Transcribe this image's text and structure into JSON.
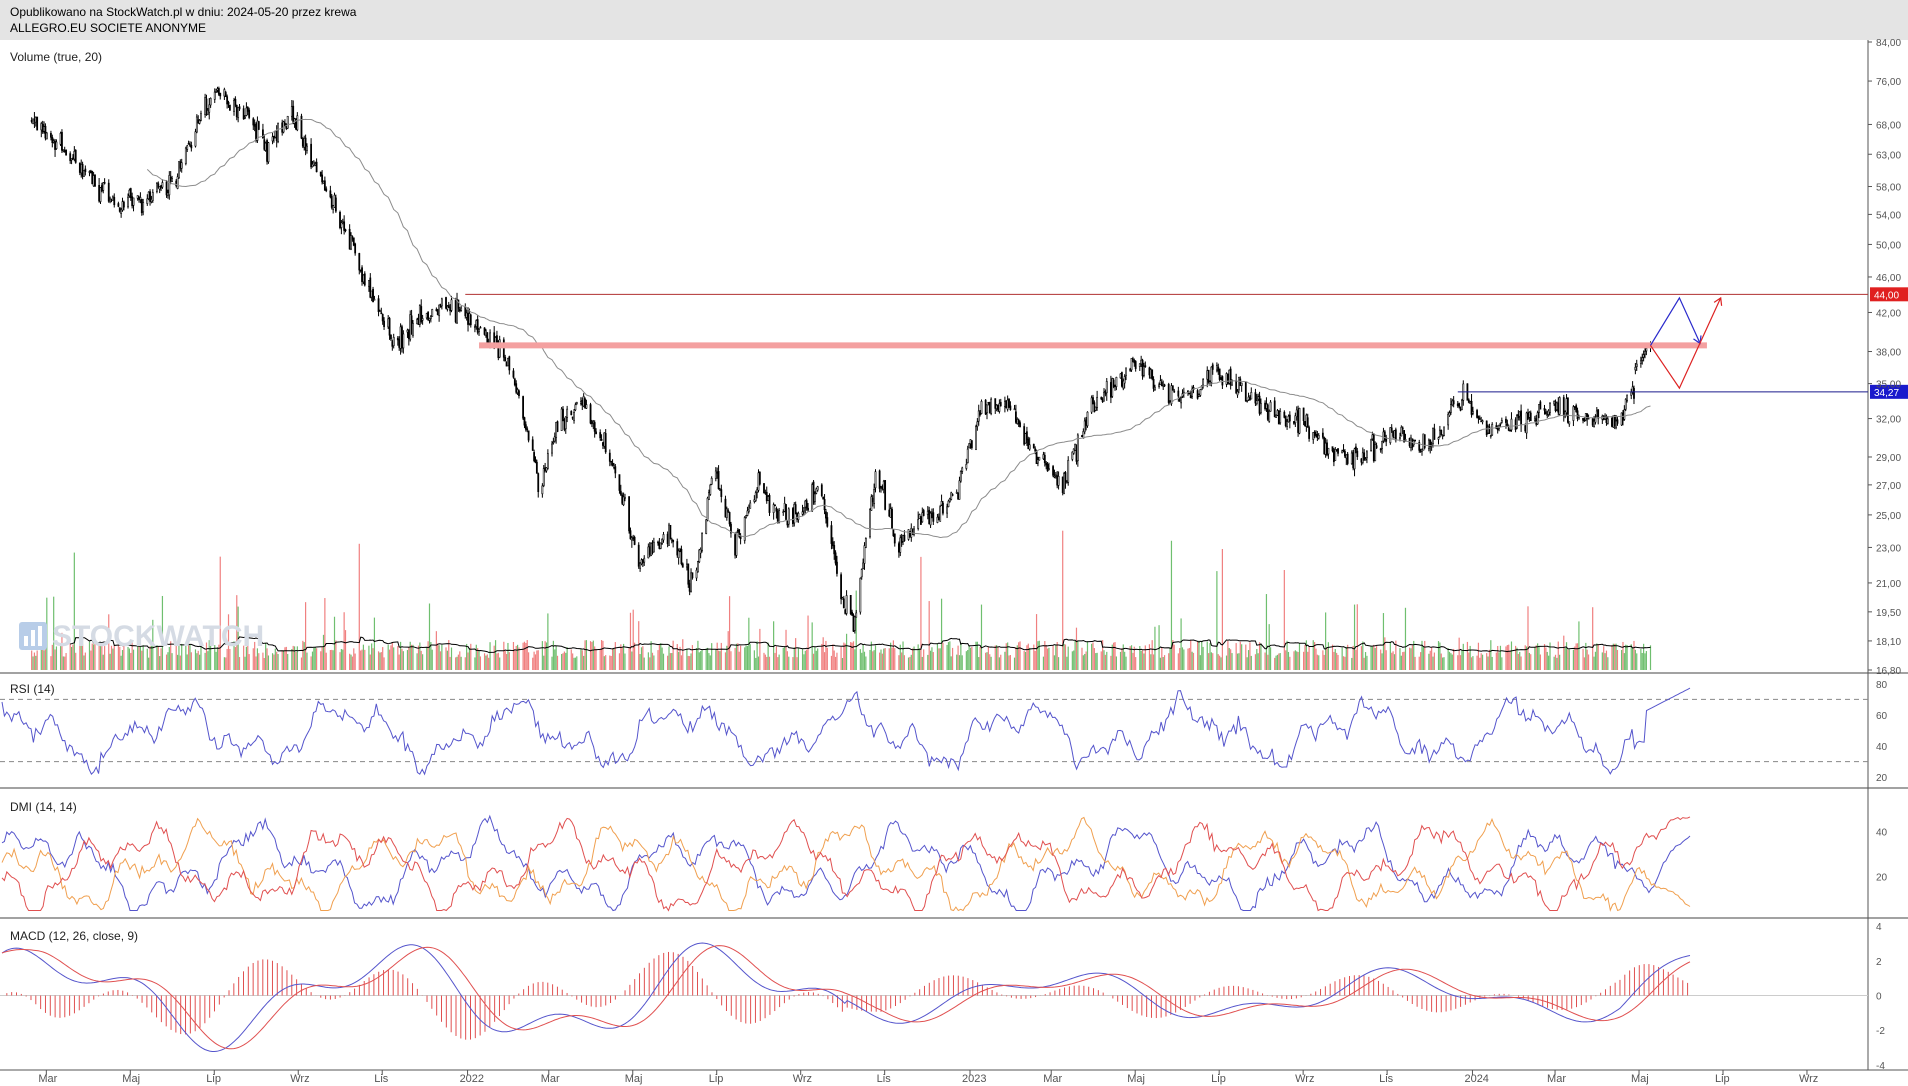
{
  "header": {
    "line1": "Opublikowano na StockWatch.pl w dniu: 2024-05-20 przez krewa",
    "line2": "ALLEGRO.EU SOCIETE ANONYME"
  },
  "watermark": "STOCKWATCH",
  "colors": {
    "price": "#000000",
    "ma": "#8c8c8c",
    "vol_up": "#6fbf6f",
    "vol_down": "#f08080",
    "rsi": "#5555cc",
    "dmi_plus": "#5555cc",
    "dmi_minus": "#f0a050",
    "adx": "#e05050",
    "macd": "#5555cc",
    "signal": "#e05050",
    "hist": "#e05050",
    "resistance": "#b03030",
    "zone": "#f4a0a0",
    "support": "#1a1a8c",
    "arrow_blue": "#2a2acc",
    "arrow_red": "#dd2222",
    "label_red": "#e02020",
    "label_blue": "#1a1acc"
  },
  "chart_data": [
    {
      "type": "candlestick",
      "panel": "price",
      "title": "",
      "indicator_label": "Volume (true, 20)",
      "y_axis_ticks": [
        "84,00",
        "76,00",
        "68,00",
        "63,00",
        "58,00",
        "54,00",
        "50,00",
        "46,00",
        "42,00",
        "38,00",
        "35,00",
        "32,00",
        "29,00",
        "27,00",
        "25,00",
        "23,00",
        "21,00",
        "19,50",
        "18,10",
        "16,80"
      ],
      "y_axis_scale": "log",
      "y_range": [
        16.8,
        84.0
      ],
      "x_axis_ticks": [
        "Mar",
        "Maj",
        "Lip",
        "Wrz",
        "Lis",
        "2022",
        "Mar",
        "Maj",
        "Lip",
        "Wrz",
        "Lis",
        "2023",
        "Mar",
        "Maj",
        "Lip",
        "Wrz",
        "Lis",
        "2024",
        "Mar",
        "Maj",
        "Lip",
        "Wrz"
      ],
      "price_path_keypoints": {
        "dates": [
          "2021-03-01",
          "2021-04-01",
          "2021-05-01",
          "2021-05-20",
          "2021-06-15",
          "2021-07-10",
          "2021-08-01",
          "2021-08-20",
          "2021-09-05",
          "2021-09-20",
          "2021-10-10",
          "2021-11-01",
          "2021-11-20",
          "2021-12-10",
          "2022-01-01",
          "2022-01-20",
          "2022-02-10",
          "2022-03-05",
          "2022-03-20",
          "2022-04-05",
          "2022-04-25",
          "2022-05-15",
          "2022-06-05",
          "2022-06-25",
          "2022-07-10",
          "2022-07-25",
          "2022-08-10",
          "2022-08-25",
          "2022-09-10",
          "2022-09-25",
          "2022-10-10",
          "2022-10-20",
          "2022-11-05",
          "2022-11-20",
          "2022-12-10",
          "2023-01-01",
          "2023-01-20",
          "2023-02-10",
          "2023-03-01",
          "2023-03-20",
          "2023-04-10",
          "2023-05-05",
          "2023-05-15",
          "2023-06-05",
          "2023-06-20",
          "2023-07-10",
          "2023-08-01",
          "2023-08-20",
          "2023-09-10",
          "2023-09-25",
          "2023-10-10",
          "2023-10-25",
          "2023-11-15",
          "2023-12-05",
          "2023-12-20",
          "2024-01-05",
          "2024-01-25",
          "2024-02-20",
          "2024-03-15",
          "2024-04-05",
          "2024-04-25",
          "2024-05-10",
          "2024-05-20"
        ],
        "close": [
          69,
          62,
          55,
          56,
          60,
          74,
          70,
          64,
          70,
          62,
          54,
          44,
          39,
          42,
          43,
          40,
          37,
          27,
          32,
          33,
          29,
          22,
          24,
          21,
          28,
          23,
          27,
          25,
          25,
          27,
          20,
          19,
          28,
          23,
          25,
          26,
          33,
          33,
          29,
          27,
          33,
          36,
          37,
          34,
          34,
          36,
          34,
          32,
          32,
          30,
          29,
          29,
          31,
          30,
          31,
          34,
          31,
          32,
          33,
          32,
          32,
          35,
          38
        ]
      },
      "ma_period": 20,
      "annotations": {
        "resistance_level": 44.0,
        "resistance_zone": 38.6,
        "support_level": 34.27,
        "price_labels": [
          "44,00",
          "34,27"
        ],
        "projection_arrows": [
          {
            "color": "blue",
            "path": [
              [
                38.6,
                "2024-05-20"
              ],
              [
                43.6,
                "2024-06-10"
              ],
              [
                38.8,
                "2024-06-25"
              ]
            ]
          },
          {
            "color": "red",
            "path": [
              [
                38.6,
                "2024-05-20"
              ],
              [
                34.6,
                "2024-06-10"
              ],
              [
                43.6,
                "2024-07-10"
              ]
            ]
          }
        ]
      },
      "volume_ma_period": 20
    },
    {
      "type": "line",
      "panel": "rsi",
      "title": "",
      "indicator_label": "RSI (14)",
      "y_axis_ticks": [
        "80",
        "60",
        "40",
        "20"
      ],
      "y_range": [
        15,
        85
      ],
      "levels": [
        70,
        30
      ],
      "series": [
        {
          "values_summary": "oscillates 25-80, ends near 78"
        }
      ]
    },
    {
      "type": "line",
      "panel": "dmi",
      "title": "",
      "indicator_label": "DMI (14, 14)",
      "y_axis_ticks": [
        "40",
        "20"
      ],
      "y_range": [
        3,
        58
      ],
      "series_count": 3
    },
    {
      "type": "line",
      "panel": "macd",
      "title": "",
      "indicator_label": "MACD (12, 26, close, 9)",
      "y_axis_ticks": [
        "4",
        "2",
        "0",
        "-2",
        "-4"
      ],
      "y_range": [
        -4.3,
        4.3
      ],
      "series_count": 2,
      "histogram": true
    }
  ]
}
